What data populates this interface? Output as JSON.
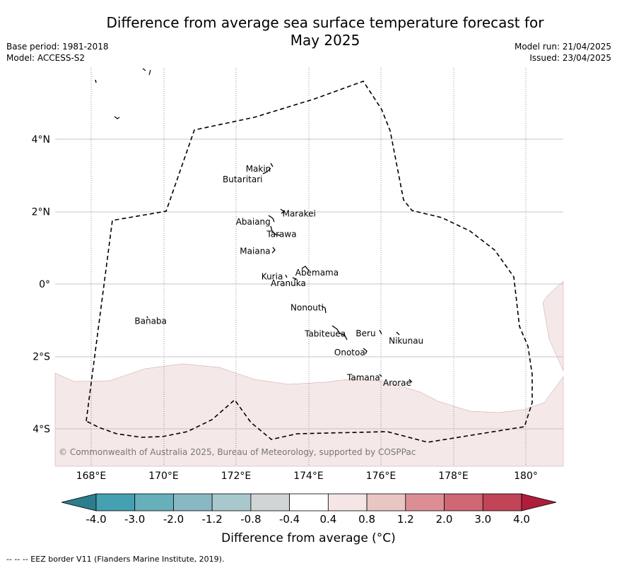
{
  "title_line1": "Difference from average sea surface temperature forecast for",
  "title_line2": "May 2025",
  "base_period": "Base period: 1981-2018",
  "model": "Model: ACCESS-S2",
  "model_run": "Model run: 21/04/2025",
  "issued": "Issued: 23/04/2025",
  "copyright": "© Commonwealth of Australia 2025, Bureau of Meteorology, supported by COSPPac",
  "lon_ticks": [
    "168°E",
    "170°E",
    "172°E",
    "174°E",
    "176°E",
    "178°E",
    "180°"
  ],
  "lat_ticks": [
    "4°N",
    "2°N",
    "0°",
    "2°S",
    "4°S"
  ],
  "islands": [
    {
      "name": "Makin",
      "lon": 172.93,
      "lat": 3.2
    },
    {
      "name": "Butaritari",
      "lon": 172.78,
      "lat": 2.95
    },
    {
      "name": "Marakei",
      "lon": 173.3,
      "lat": 1.9
    },
    {
      "name": "Abaiang",
      "lon": 172.95,
      "lat": 1.7
    },
    {
      "name": "Tarawa",
      "lon": 173.1,
      "lat": 1.4
    },
    {
      "name": "Maiana",
      "lon": 173.0,
      "lat": 0.95
    },
    {
      "name": "Abemama",
      "lon": 173.85,
      "lat": 0.35
    },
    {
      "name": "Kuria",
      "lon": 173.4,
      "lat": 0.22
    },
    {
      "name": "Aranuka",
      "lon": 173.6,
      "lat": 0.1
    },
    {
      "name": "Nonouti",
      "lon": 174.4,
      "lat": -0.65
    },
    {
      "name": "Banaba",
      "lon": 169.55,
      "lat": -0.87
    },
    {
      "name": "Beru",
      "lon": 175.95,
      "lat": -1.35
    },
    {
      "name": "Nikunau",
      "lon": 176.45,
      "lat": -1.38
    },
    {
      "name": "Tabiteuea",
      "lon": 174.85,
      "lat": -1.3
    },
    {
      "name": "Onotoa",
      "lon": 175.55,
      "lat": -1.85
    },
    {
      "name": "Tamana",
      "lon": 175.98,
      "lat": -2.55
    },
    {
      "name": "Arorae",
      "lon": 176.8,
      "lat": -2.65
    }
  ],
  "colorbar": {
    "labels": [
      "-4.0",
      "-3.0",
      "-2.0",
      "-1.2",
      "-0.8",
      "-0.4",
      "0.4",
      "0.8",
      "1.2",
      "2.0",
      "3.0",
      "4.0"
    ],
    "colors": [
      "#2c7e8e",
      "#45a0b1",
      "#67afbb",
      "#88b8c3",
      "#a9c8ce",
      "#d0d5d5",
      "#ffffff",
      "#f5e6e5",
      "#e9c6c3",
      "#db8f95",
      "#cf6775",
      "#c14556",
      "#ae1d3a"
    ],
    "title": "Difference from average (°C)"
  },
  "anomaly_band": {
    "lower_bound_category": "0.4 to 0.8",
    "color": "#f5e8e8"
  },
  "footer": "-- -- -- EEZ border V11 (Flanders Marine Institute, 2019)."
}
